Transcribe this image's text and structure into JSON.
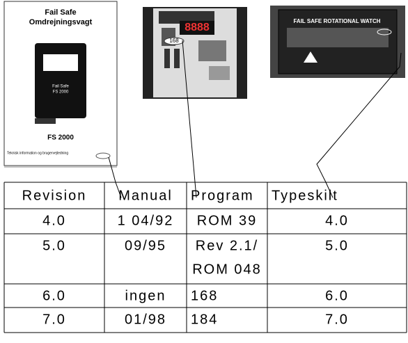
{
  "manual_cover": {
    "title": "Fail Safe",
    "subtitle": "Omdrejningsvagt",
    "device_label": [
      "Fail Safe",
      "FS 2000"
    ],
    "model": "FS 2000",
    "footer": "Teknisk information og brugervejledning"
  },
  "circuit_board": {
    "label": "168"
  },
  "type_plate": {
    "title": "FAIL SAFE ROTATIONAL WATCH"
  },
  "table": {
    "header": [
      "Revision",
      "Manual",
      "Program",
      "Typeskilt"
    ],
    "rows": [
      [
        "4.0",
        "1 04/92",
        "ROM 39",
        "4.0"
      ],
      [
        "5.0",
        "09/95",
        [
          "Rev 2.1/",
          "ROM 048"
        ],
        "5.0"
      ],
      [
        "6.0",
        "ingen",
        "168",
        "6.0"
      ],
      [
        "7.0",
        "01/98",
        "184",
        "7.0"
      ]
    ]
  }
}
